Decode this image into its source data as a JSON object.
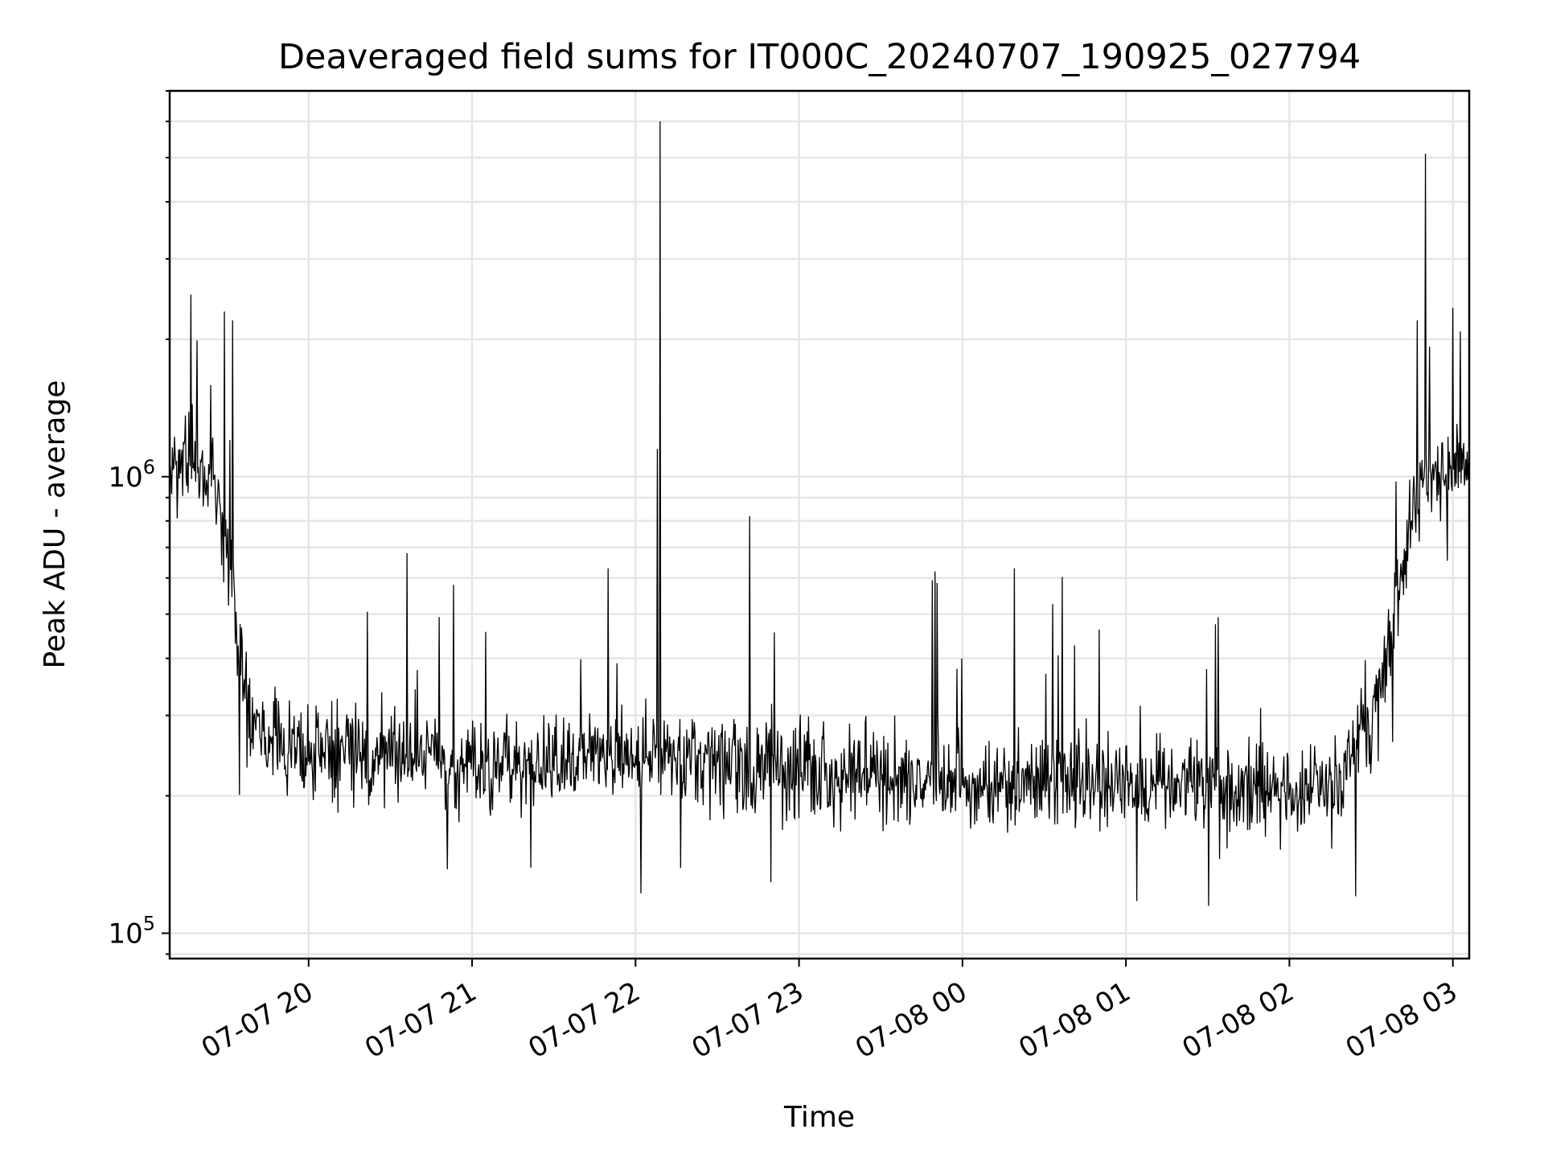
{
  "chart_data": {
    "type": "line",
    "title": "Deaveraged field sums for IT000C_20240707_190925_027794",
    "xlabel": "Time",
    "ylabel": "Peak ADU - average",
    "yscale": "log",
    "ylim": [
      88000,
      7000000
    ],
    "xlim": [
      "2024-07-07 19:09",
      "2024-07-08 03:06"
    ],
    "grid": true,
    "x_ticks": [
      {
        "t": "2024-07-07 20:00",
        "label": "07-07 20"
      },
      {
        "t": "2024-07-07 21:00",
        "label": "07-07 21"
      },
      {
        "t": "2024-07-07 22:00",
        "label": "07-07 22"
      },
      {
        "t": "2024-07-07 23:00",
        "label": "07-07 23"
      },
      {
        "t": "2024-07-08 00:00",
        "label": "07-08 00"
      },
      {
        "t": "2024-07-08 01:00",
        "label": "07-08 01"
      },
      {
        "t": "2024-07-08 02:00",
        "label": "07-08 02"
      },
      {
        "t": "2024-07-08 03:00",
        "label": "07-08 03"
      }
    ],
    "y_ticks": [
      {
        "value": 100000,
        "base": "10",
        "exp": "5"
      },
      {
        "value": 1000000,
        "base": "10",
        "exp": "6"
      }
    ],
    "series": [
      {
        "color": "#000000",
        "points": [
          {
            "t": "2024-07-07 19:09",
            "y": 1000000
          },
          {
            "t": "2024-07-07 19:15",
            "y": 1100000
          },
          {
            "t": "2024-07-07 19:20",
            "y": 1050000
          },
          {
            "t": "2024-07-07 19:25",
            "y": 950000
          },
          {
            "t": "2024-07-07 19:30",
            "y": 700000
          },
          {
            "t": "2024-07-07 19:34",
            "y": 450000
          },
          {
            "t": "2024-07-07 19:38",
            "y": 320000
          },
          {
            "t": "2024-07-07 19:45",
            "y": 260000
          },
          {
            "t": "2024-07-07 20:00",
            "y": 245000
          },
          {
            "t": "2024-07-07 20:30",
            "y": 240000
          },
          {
            "t": "2024-07-07 21:00",
            "y": 235000
          },
          {
            "t": "2024-07-07 21:30",
            "y": 240000
          },
          {
            "t": "2024-07-07 22:00",
            "y": 255000
          },
          {
            "t": "2024-07-07 22:30",
            "y": 235000
          },
          {
            "t": "2024-07-07 23:00",
            "y": 225000
          },
          {
            "t": "2024-07-07 23:30",
            "y": 220000
          },
          {
            "t": "2024-07-08 00:00",
            "y": 215000
          },
          {
            "t": "2024-07-08 00:30",
            "y": 215000
          },
          {
            "t": "2024-07-08 01:00",
            "y": 215000
          },
          {
            "t": "2024-07-08 01:30",
            "y": 212000
          },
          {
            "t": "2024-07-08 02:00",
            "y": 205000
          },
          {
            "t": "2024-07-08 02:20",
            "y": 220000
          },
          {
            "t": "2024-07-08 02:30",
            "y": 300000
          },
          {
            "t": "2024-07-08 02:38",
            "y": 460000
          },
          {
            "t": "2024-07-08 02:42",
            "y": 700000
          },
          {
            "t": "2024-07-08 02:48",
            "y": 950000
          },
          {
            "t": "2024-07-08 03:00",
            "y": 1050000
          },
          {
            "t": "2024-07-08 03:06",
            "y": 1050000
          }
        ],
        "spikes": [
          {
            "t": "2024-07-07 19:29",
            "y": 2300000
          },
          {
            "t": "2024-07-07 19:32",
            "y": 2200000
          },
          {
            "t": "2024-07-07 20:36",
            "y": 680000
          },
          {
            "t": "2024-07-07 21:50",
            "y": 630000
          },
          {
            "t": "2024-07-07 22:09",
            "y": 6000000
          },
          {
            "t": "2024-07-07 22:08",
            "y": 1150000
          },
          {
            "t": "2024-07-07 22:42",
            "y": 820000
          },
          {
            "t": "2024-07-07 23:50",
            "y": 620000
          },
          {
            "t": "2024-07-08 00:19",
            "y": 630000
          },
          {
            "t": "2024-07-08 02:50",
            "y": 5100000
          },
          {
            "t": "2024-07-08 02:47",
            "y": 2200000
          }
        ]
      }
    ]
  }
}
